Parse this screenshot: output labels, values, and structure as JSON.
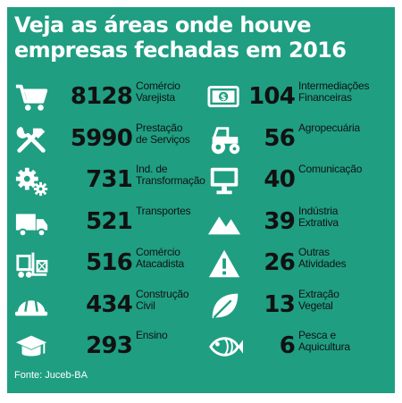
{
  "title_line1": "Veja as áreas onde houve",
  "title_line2": "empresas fechadas em 2016",
  "source": "Fonte: Juceb-BA",
  "colors": {
    "background": "#1f9e82",
    "text": "#111111",
    "title": "#ffffff"
  },
  "chart_data": {
    "type": "table",
    "title": "Veja as áreas onde houve empresas fechadas em 2016",
    "columns": [
      [
        {
          "value": "8128",
          "label": "Comércio\nVarejista",
          "icon": "shopping-cart-icon"
        },
        {
          "value": "5990",
          "label": "Prestação\nde Serviços",
          "icon": "tools-icon"
        },
        {
          "value": "731",
          "label": "Ind. de\nTransformação",
          "icon": "gears-icon"
        },
        {
          "value": "521",
          "label": "Transportes",
          "icon": "truck-icon"
        },
        {
          "value": "516",
          "label": "Comércio\nAtacadista",
          "icon": "forklift-icon"
        },
        {
          "value": "434",
          "label": "Construção\nCivil",
          "icon": "hard-hat-icon"
        },
        {
          "value": "293",
          "label": "Ensino",
          "icon": "graduation-cap-icon"
        }
      ],
      [
        {
          "value": "104",
          "label": "Intermediações\nFinanceiras",
          "icon": "money-bill-icon"
        },
        {
          "value": "56",
          "label": "Agropecuária",
          "icon": "tractor-icon"
        },
        {
          "value": "40",
          "label": "Comunicação",
          "icon": "monitor-icon"
        },
        {
          "value": "39",
          "label": "Indústria\nExtrativa",
          "icon": "mountains-icon"
        },
        {
          "value": "26",
          "label": "Outras\nAtividades",
          "icon": "warning-icon"
        },
        {
          "value": "13",
          "label": "Extração\nVegetal",
          "icon": "leaf-icon"
        },
        {
          "value": "6",
          "label": "Pesca e\nAquicultura",
          "icon": "fish-icon"
        }
      ]
    ]
  }
}
